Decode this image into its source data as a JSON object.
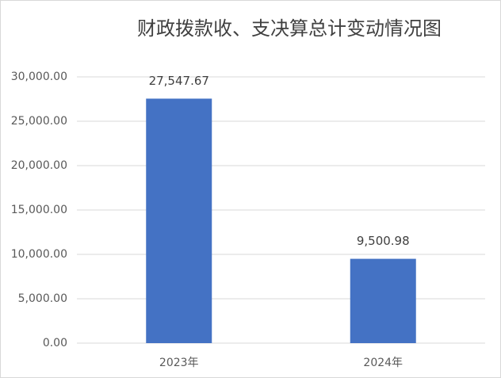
{
  "chart_data": {
    "type": "bar",
    "title": "财政拨款收、支决算总计变动情况图",
    "categories": [
      "2023年",
      "2024年"
    ],
    "values": [
      27547.67,
      9500.98
    ],
    "value_labels": [
      "27,547.67",
      "9,500.98"
    ],
    "color": "#4472c4",
    "ylim": [
      0,
      30000
    ],
    "yticks": [
      {
        "value": 0,
        "label": "0.00"
      },
      {
        "value": 5000,
        "label": "5,000.00"
      },
      {
        "value": 10000,
        "label": "10,000.00"
      },
      {
        "value": 15000,
        "label": "15,000.00"
      },
      {
        "value": 20000,
        "label": "20,000.00"
      },
      {
        "value": 25000,
        "label": "25,000.00"
      },
      {
        "value": 30000,
        "label": "30,000.00"
      }
    ],
    "grid": true
  }
}
